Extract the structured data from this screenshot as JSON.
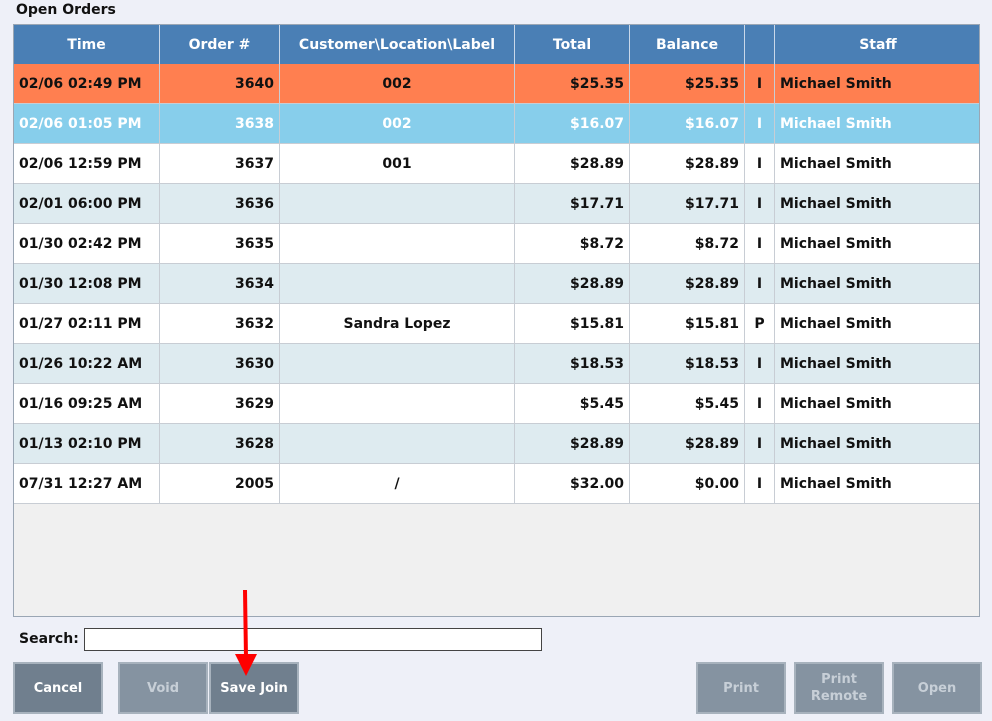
{
  "window": {
    "title": "Open Orders"
  },
  "table": {
    "columns": [
      "Time",
      "Order #",
      "Customer\\Location\\Label",
      "Total",
      "Balance",
      "",
      "Staff"
    ],
    "rows": [
      {
        "time": "02/06 02:49 PM",
        "order": "3640",
        "customer": "002",
        "total": "$25.35",
        "balance": "$25.35",
        "type": "I",
        "staff": "Michael Smith",
        "state": "selected-orange"
      },
      {
        "time": "02/06 01:05 PM",
        "order": "3638",
        "customer": "002",
        "total": "$16.07",
        "balance": "$16.07",
        "type": "I",
        "staff": "Michael Smith",
        "state": "selected-blue"
      },
      {
        "time": "02/06 12:59 PM",
        "order": "3637",
        "customer": "001",
        "total": "$28.89",
        "balance": "$28.89",
        "type": "I",
        "staff": "Michael Smith",
        "state": "normal"
      },
      {
        "time": "02/01 06:00 PM",
        "order": "3636",
        "customer": "",
        "total": "$17.71",
        "balance": "$17.71",
        "type": "I",
        "staff": "Michael Smith",
        "state": "normal"
      },
      {
        "time": "01/30 02:42 PM",
        "order": "3635",
        "customer": "",
        "total": "$8.72",
        "balance": "$8.72",
        "type": "I",
        "staff": "Michael Smith",
        "state": "normal"
      },
      {
        "time": "01/30 12:08 PM",
        "order": "3634",
        "customer": "",
        "total": "$28.89",
        "balance": "$28.89",
        "type": "I",
        "staff": "Michael Smith",
        "state": "normal"
      },
      {
        "time": "01/27 02:11 PM",
        "order": "3632",
        "customer": "Sandra Lopez",
        "total": "$15.81",
        "balance": "$15.81",
        "type": "P",
        "staff": "Michael Smith",
        "state": "normal"
      },
      {
        "time": "01/26 10:22 AM",
        "order": "3630",
        "customer": "",
        "total": "$18.53",
        "balance": "$18.53",
        "type": "I",
        "staff": "Michael Smith",
        "state": "normal"
      },
      {
        "time": "01/16 09:25 AM",
        "order": "3629",
        "customer": "",
        "total": "$5.45",
        "balance": "$5.45",
        "type": "I",
        "staff": "Michael Smith",
        "state": "normal"
      },
      {
        "time": "01/13 02:10 PM",
        "order": "3628",
        "customer": "",
        "total": "$28.89",
        "balance": "$28.89",
        "type": "I",
        "staff": "Michael Smith",
        "state": "normal"
      },
      {
        "time": "07/31 12:27 AM",
        "order": "2005",
        "customer": "/",
        "total": "$32.00",
        "balance": "$0.00",
        "type": "I",
        "staff": "Michael Smith",
        "state": "normal"
      }
    ]
  },
  "search": {
    "label": "Search:",
    "value": "",
    "placeholder": ""
  },
  "buttons": {
    "cancel": "Cancel",
    "void": "Void",
    "save_join": "Save Join",
    "print": "Print",
    "print_remote": "Print\nRemote",
    "open": "Open"
  },
  "annotation": {
    "icon": "red-arrow-icon",
    "color": "#ff0000"
  },
  "colors": {
    "header": "#4a7fb5",
    "row_selected_orange": "#ff7f50",
    "row_selected_blue": "#87ceeb",
    "row_alt": "#deebf0",
    "button": "#707f8e"
  }
}
